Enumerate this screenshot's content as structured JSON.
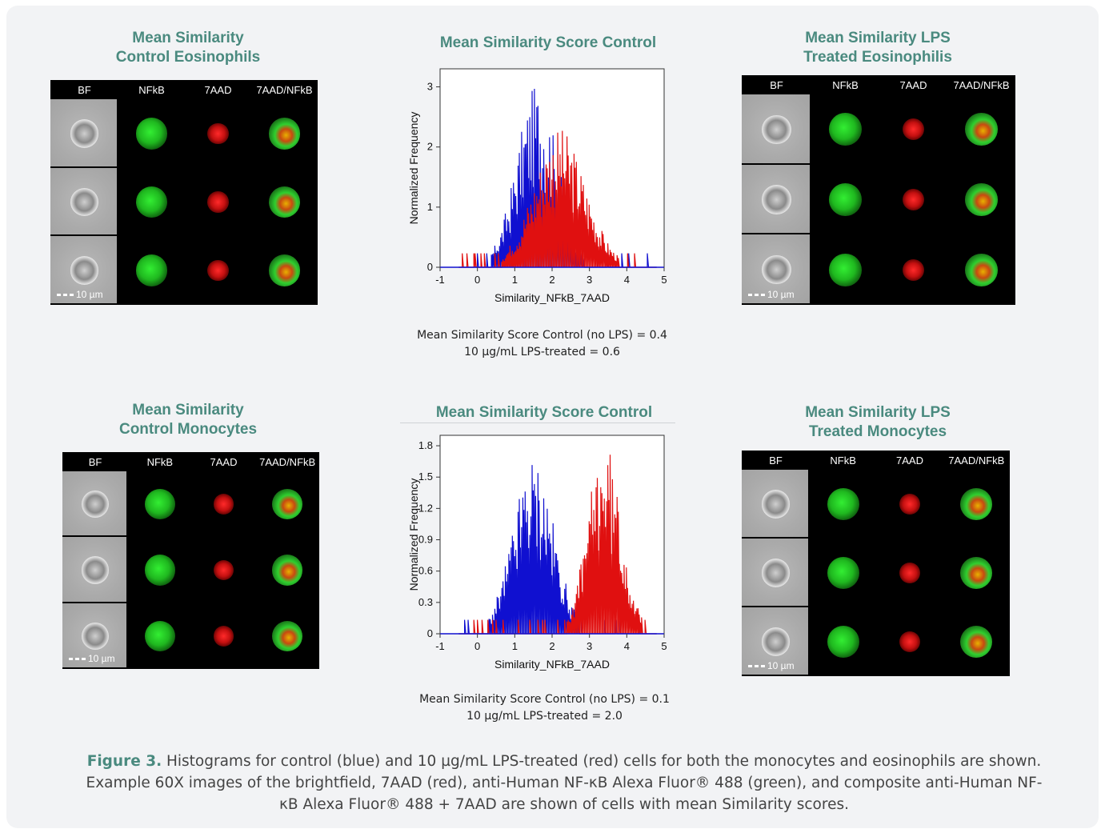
{
  "panels": [
    {
      "id": "eos-control",
      "title_line1": "Mean Similarity",
      "title_line2": "Control Eosinophils",
      "columns": [
        "BF",
        "NFkB",
        "7AAD",
        "7AAD/NFkB"
      ],
      "scale": "10 µm"
    },
    {
      "id": "eos-lps",
      "title_line1": "Mean Similarity LPS",
      "title_line2": "Treated Eosinophilis",
      "columns": [
        "BF",
        "NFkB",
        "7AAD",
        "7AAD/NFkB"
      ],
      "scale": "10 µm"
    },
    {
      "id": "mono-control",
      "title_line1": "Mean Similarity",
      "title_line2": "Control Monocytes",
      "columns": [
        "BF",
        "NFkB",
        "7AAD",
        "7AAD/NFkB"
      ],
      "scale": "10 µm"
    },
    {
      "id": "mono-lps",
      "title_line1": "Mean Similarity LPS",
      "title_line2": "Treated Monocytes",
      "columns": [
        "BF",
        "NFkB",
        "7AAD",
        "7AAD/NFkB"
      ],
      "scale": "10 µm"
    }
  ],
  "chart_data": [
    {
      "type": "line",
      "title": "Mean Similarity Score Control",
      "xlabel": "Similarity_NFkB_7AAD",
      "ylabel": "Normalized Frequency",
      "xlim": [
        -1,
        5
      ],
      "ylim": [
        0,
        3.3
      ],
      "xticks": [
        "-1",
        "0",
        "1",
        "2",
        "3",
        "4",
        "5"
      ],
      "yticks": [
        "0",
        "1",
        "2",
        "3"
      ],
      "grid": false,
      "series": [
        {
          "color": "#1010d0",
          "center": 1.6,
          "spread": 0.55,
          "peak": 2.9
        },
        {
          "color": "#e01010",
          "center": 2.2,
          "spread": 0.7,
          "peak": 2.2
        }
      ],
      "caption_line1": "Mean Similarity Score  Control (no LPS) = 0.4",
      "caption_line2": "10 µg/mL LPS-treated = 0.6"
    },
    {
      "type": "line",
      "title": "Mean Similarity Score Control",
      "xlabel": "Similarity_NFkB_7AAD",
      "ylabel": "Normalized Frequency",
      "xlim": [
        -1,
        5
      ],
      "ylim": [
        0,
        1.9
      ],
      "xticks": [
        "-1",
        "0",
        "1",
        "2",
        "3",
        "4",
        "5"
      ],
      "yticks": [
        "0",
        "0.3",
        "0.6",
        "0.9",
        "1.2",
        "1.5",
        "1.8"
      ],
      "grid": false,
      "series": [
        {
          "color": "#1010d0",
          "center": 1.5,
          "spread": 0.55,
          "peak": 1.6
        },
        {
          "color": "#e01010",
          "center": 3.4,
          "spread": 0.45,
          "peak": 1.75
        }
      ],
      "caption_line1": "Mean Similarity Score  Control (no LPS) = 0.1",
      "caption_line2": "10 µg/mL LPS-treated = 2.0"
    }
  ],
  "figure_caption": {
    "label": "Figure 3.",
    "text": " Histograms for control (blue) and 10 µg/mL LPS-treated (red) cells for both the monocytes and eosinophils are shown. Example 60X images of the brightfield, 7AAD (red), anti-Human NF-κB Alexa Fluor® 488 (green), and composite anti-Human NF-κB Alexa Fluor® 488 + 7AAD are shown of cells with mean Similarity scores."
  },
  "colors": {
    "accent": "#4a8a7f",
    "control": "#1010d0",
    "lps": "#e01010",
    "nfkb": "#22cc22",
    "aad": "#dd1111"
  }
}
